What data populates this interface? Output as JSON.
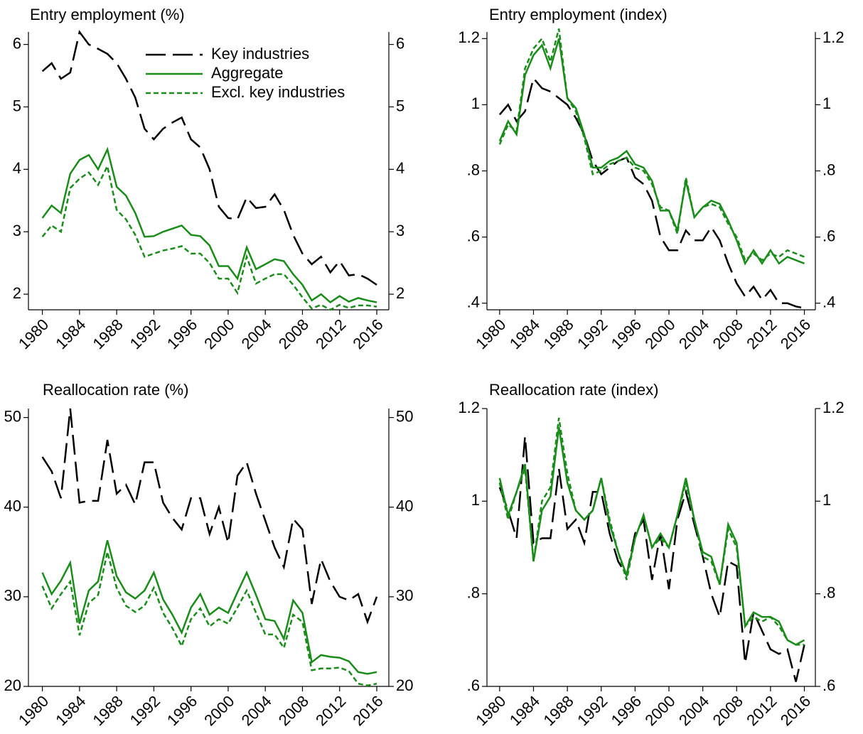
{
  "chart_data": [
    {
      "type": "line",
      "title": "Entry employment (%)",
      "legend": "upper right",
      "x": [
        1980,
        1981,
        1982,
        1983,
        1984,
        1985,
        1986,
        1987,
        1988,
        1989,
        1990,
        1991,
        1992,
        1993,
        1994,
        1995,
        1996,
        1997,
        1998,
        1999,
        2000,
        2001,
        2002,
        2003,
        2004,
        2005,
        2006,
        2007,
        2008,
        2009,
        2010,
        2011,
        2012,
        2013,
        2014,
        2015,
        2016
      ],
      "xlim": [
        1978.5,
        2017.3
      ],
      "xticks": [
        1980,
        1984,
        1988,
        1992,
        1996,
        2000,
        2004,
        2008,
        2012,
        2016
      ],
      "ylim": [
        1.75,
        6.2
      ],
      "yticks": [
        2,
        3,
        4,
        5,
        6
      ],
      "series": [
        {
          "name": "Key industries",
          "color": "#000000",
          "dash": "long",
          "values": [
            5.57,
            5.7,
            5.45,
            5.55,
            6.2,
            6.0,
            5.93,
            5.85,
            5.7,
            5.45,
            5.15,
            4.65,
            4.48,
            4.65,
            4.75,
            4.83,
            4.48,
            4.35,
            4.0,
            3.4,
            3.22,
            3.2,
            3.55,
            3.38,
            3.4,
            3.6,
            3.35,
            2.95,
            2.65,
            2.48,
            2.6,
            2.35,
            2.53,
            2.3,
            2.32,
            2.25,
            2.15
          ]
        },
        {
          "name": "Aggregate",
          "color": "#1a8c1a",
          "dash": "solid",
          "values": [
            3.22,
            3.42,
            3.3,
            3.93,
            4.15,
            4.23,
            4.0,
            4.32,
            3.72,
            3.58,
            3.3,
            2.92,
            2.93,
            3.0,
            3.05,
            3.1,
            2.95,
            2.93,
            2.78,
            2.45,
            2.45,
            2.25,
            2.75,
            2.4,
            2.48,
            2.56,
            2.53,
            2.32,
            2.15,
            1.9,
            2.0,
            1.87,
            1.97,
            1.88,
            1.94,
            1.9,
            1.87
          ]
        },
        {
          "name": "Excl. key industries",
          "color": "#1a8c1a",
          "dash": "short",
          "values": [
            2.92,
            3.1,
            3.0,
            3.7,
            3.85,
            3.95,
            3.75,
            4.05,
            3.35,
            3.2,
            2.95,
            2.6,
            2.65,
            2.7,
            2.73,
            2.77,
            2.65,
            2.65,
            2.5,
            2.25,
            2.25,
            2.02,
            2.6,
            2.17,
            2.25,
            2.32,
            2.32,
            2.15,
            1.95,
            1.77,
            1.83,
            1.75,
            1.83,
            1.78,
            1.82,
            1.82,
            1.8
          ]
        }
      ]
    },
    {
      "type": "line",
      "title": "Entry employment (index)",
      "x": [
        1980,
        1981,
        1982,
        1983,
        1984,
        1985,
        1986,
        1987,
        1988,
        1989,
        1990,
        1991,
        1992,
        1993,
        1994,
        1995,
        1996,
        1997,
        1998,
        1999,
        2000,
        2001,
        2002,
        2003,
        2004,
        2005,
        2006,
        2007,
        2008,
        2009,
        2010,
        2011,
        2012,
        2013,
        2014,
        2015,
        2016
      ],
      "xlim": [
        1978.5,
        2017.3
      ],
      "xticks": [
        1980,
        1984,
        1988,
        1992,
        1996,
        2000,
        2004,
        2008,
        2012,
        2016
      ],
      "ylim": [
        0.38,
        1.22
      ],
      "yticks": [
        {
          "value": 0.4,
          "label": ".4"
        },
        {
          "value": 0.6,
          "label": ".6"
        },
        {
          "value": 0.8,
          "label": ".8"
        },
        1,
        1.2
      ],
      "series": [
        {
          "color": "#000000",
          "dash": "long",
          "values": [
            0.97,
            1.0,
            0.95,
            0.98,
            1.08,
            1.05,
            1.04,
            1.02,
            1.0,
            0.96,
            0.91,
            0.83,
            0.79,
            0.81,
            0.83,
            0.84,
            0.78,
            0.76,
            0.71,
            0.6,
            0.56,
            0.56,
            0.62,
            0.59,
            0.59,
            0.63,
            0.59,
            0.52,
            0.46,
            0.42,
            0.45,
            0.41,
            0.44,
            0.4,
            0.4,
            0.39,
            0.385
          ]
        },
        {
          "color": "#1a8c1a",
          "dash": "solid",
          "values": [
            0.89,
            0.95,
            0.91,
            1.09,
            1.15,
            1.18,
            1.11,
            1.2,
            1.02,
            0.99,
            0.91,
            0.81,
            0.81,
            0.83,
            0.84,
            0.86,
            0.82,
            0.81,
            0.77,
            0.68,
            0.68,
            0.62,
            0.77,
            0.66,
            0.69,
            0.71,
            0.7,
            0.65,
            0.59,
            0.52,
            0.56,
            0.52,
            0.56,
            0.52,
            0.54,
            0.53,
            0.52
          ]
        },
        {
          "color": "#1a8c1a",
          "dash": "short",
          "values": [
            0.88,
            0.94,
            0.92,
            1.11,
            1.17,
            1.2,
            1.13,
            1.23,
            1.02,
            0.98,
            0.9,
            0.79,
            0.8,
            0.82,
            0.83,
            0.84,
            0.81,
            0.8,
            0.76,
            0.69,
            0.68,
            0.61,
            0.78,
            0.66,
            0.69,
            0.7,
            0.69,
            0.64,
            0.6,
            0.53,
            0.55,
            0.53,
            0.55,
            0.54,
            0.56,
            0.55,
            0.54
          ]
        }
      ]
    },
    {
      "type": "line",
      "title": "Reallocation rate (%)",
      "x": [
        1980,
        1981,
        1982,
        1983,
        1984,
        1985,
        1986,
        1987,
        1988,
        1989,
        1990,
        1991,
        1992,
        1993,
        1994,
        1995,
        1996,
        1997,
        1998,
        1999,
        2000,
        2001,
        2002,
        2003,
        2004,
        2005,
        2006,
        2007,
        2008,
        2009,
        2010,
        2011,
        2012,
        2013,
        2014,
        2015,
        2016
      ],
      "xlim": [
        1978.5,
        2017.3
      ],
      "xticks": [
        1980,
        1984,
        1988,
        1992,
        1996,
        2000,
        2004,
        2008,
        2012,
        2016
      ],
      "ylim": [
        20,
        51
      ],
      "yticks": [
        20,
        30,
        40,
        50
      ],
      "series": [
        {
          "color": "#000000",
          "dash": "long",
          "values": [
            45.6,
            44,
            41,
            51,
            40.5,
            40.7,
            40.7,
            47.5,
            41.5,
            42.5,
            40.3,
            45,
            45,
            40.5,
            38.8,
            37.5,
            41,
            41,
            37,
            40,
            36,
            43.5,
            45,
            41.5,
            38.5,
            35.5,
            33.3,
            38.7,
            37.5,
            29.2,
            34.2,
            31.7,
            30,
            29.6,
            30.3,
            27.2,
            30
          ]
        },
        {
          "color": "#1a8c1a",
          "dash": "solid",
          "values": [
            32.7,
            30.3,
            31.8,
            33.8,
            27,
            30.7,
            31.7,
            36.3,
            32.3,
            30.5,
            29.8,
            30.7,
            32.7,
            29.7,
            28,
            26,
            28.8,
            30.3,
            28,
            28.8,
            28.2,
            30.5,
            32.7,
            30.2,
            27.5,
            27.3,
            25.3,
            29.6,
            28.2,
            22.7,
            23.5,
            23.3,
            23.2,
            22.8,
            21.6,
            21.4,
            21.6
          ]
        },
        {
          "color": "#1a8c1a",
          "dash": "short",
          "values": [
            31.2,
            28.7,
            30.3,
            31.7,
            25.7,
            29.3,
            30.2,
            35,
            31,
            29,
            28.3,
            29,
            31,
            28.2,
            26.5,
            24.5,
            27.5,
            28.7,
            26.7,
            27.5,
            27,
            28.8,
            30.7,
            28.2,
            25.8,
            25.8,
            24.3,
            28,
            27.2,
            21.8,
            22,
            22,
            22.1,
            21.7,
            20.3,
            20.1,
            20.3
          ]
        }
      ]
    },
    {
      "type": "line",
      "title": "Reallocation rate (index)",
      "x": [
        1980,
        1981,
        1982,
        1983,
        1984,
        1985,
        1986,
        1987,
        1988,
        1989,
        1990,
        1991,
        1992,
        1993,
        1994,
        1995,
        1996,
        1997,
        1998,
        1999,
        2000,
        2001,
        2002,
        2003,
        2004,
        2005,
        2006,
        2007,
        2008,
        2009,
        2010,
        2011,
        2012,
        2013,
        2014,
        2015,
        2016
      ],
      "xlim": [
        1978.5,
        2017.3
      ],
      "xticks": [
        1980,
        1984,
        1988,
        1992,
        1996,
        2000,
        2004,
        2008,
        2012,
        2016
      ],
      "ylim": [
        0.6,
        1.2
      ],
      "yticks": [
        {
          "value": 0.6,
          "label": ".6"
        },
        {
          "value": 0.8,
          "label": ".8"
        },
        1,
        1.2
      ],
      "series": [
        {
          "color": "#000000",
          "dash": "long",
          "values": [
            1.03,
            0.98,
            0.92,
            1.14,
            0.91,
            0.92,
            0.92,
            1.07,
            0.94,
            0.96,
            0.91,
            1.02,
            1.02,
            0.93,
            0.87,
            0.84,
            0.93,
            0.96,
            0.83,
            0.93,
            0.81,
            0.96,
            1.02,
            0.95,
            0.88,
            0.8,
            0.75,
            0.87,
            0.86,
            0.65,
            0.76,
            0.72,
            0.68,
            0.67,
            0.68,
            0.61,
            0.69
          ]
        },
        {
          "color": "#1a8c1a",
          "dash": "solid",
          "values": [
            1.05,
            0.97,
            1.02,
            1.08,
            0.87,
            0.98,
            1.01,
            1.16,
            1.04,
            0.98,
            0.96,
            0.98,
            1.05,
            0.95,
            0.89,
            0.84,
            0.92,
            0.97,
            0.9,
            0.93,
            0.9,
            0.97,
            1.05,
            0.96,
            0.89,
            0.88,
            0.82,
            0.95,
            0.91,
            0.73,
            0.76,
            0.75,
            0.75,
            0.74,
            0.7,
            0.69,
            0.7
          ]
        },
        {
          "color": "#1a8c1a",
          "dash": "short",
          "values": [
            1.04,
            0.96,
            1.02,
            1.07,
            0.87,
            1.0,
            1.03,
            1.18,
            1.06,
            0.98,
            0.96,
            0.98,
            1.05,
            0.96,
            0.89,
            0.83,
            0.92,
            0.97,
            0.9,
            0.92,
            0.9,
            0.97,
            1.04,
            0.96,
            0.88,
            0.87,
            0.82,
            0.94,
            0.9,
            0.73,
            0.75,
            0.74,
            0.75,
            0.73,
            0.7,
            0.69,
            0.69
          ]
        }
      ]
    }
  ]
}
